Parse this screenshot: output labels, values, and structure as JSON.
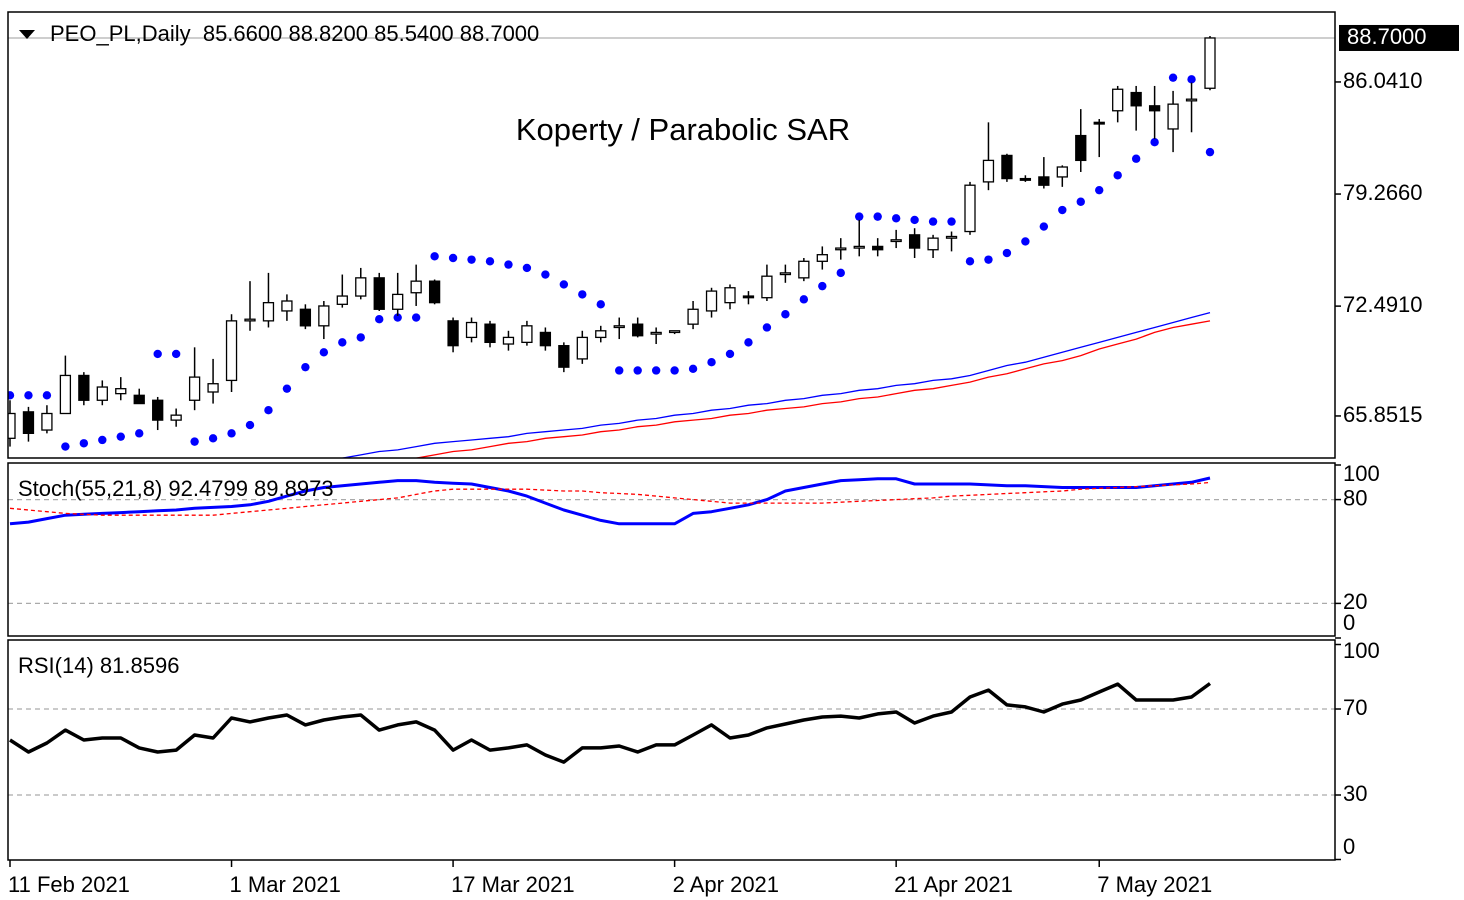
{
  "chart_data": [
    {
      "type": "candlestick",
      "title": "PEO_PL,Daily  85.6600 88.8200 85.5400 88.7000",
      "annotation": "Koperty / Parabolic SAR",
      "open": [
        64.5,
        66.1,
        65.0,
        66.0,
        68.3,
        66.8,
        67.2,
        67.1,
        66.8,
        65.6,
        66.8,
        67.3,
        68.0,
        71.6,
        71.6,
        72.2,
        72.3,
        71.3,
        72.6,
        73.1,
        74.2,
        72.3,
        73.3,
        74.0,
        71.6,
        70.6,
        71.4,
        70.2,
        70.3,
        70.9,
        70.1,
        69.3,
        70.6,
        71.2,
        71.4,
        70.8,
        70.9,
        71.4,
        72.2,
        72.7,
        73.1,
        73.0,
        74.4,
        74.2,
        75.2,
        75.9,
        76.0,
        76.1,
        76.4,
        76.8,
        75.9,
        76.6,
        77.0,
        80.0,
        81.6,
        80.2,
        80.3,
        80.3,
        82.8,
        83.6,
        84.3,
        85.4,
        84.6,
        83.2,
        84.9,
        85.66
      ],
      "high": [
        66.8,
        66.4,
        66.5,
        69.5,
        68.5,
        68.0,
        68.2,
        67.5,
        67.0,
        66.3,
        70.0,
        69.3,
        72.0,
        74.0,
        74.5,
        73.2,
        72.6,
        72.8,
        74.4,
        74.8,
        74.5,
        74.5,
        75.0,
        74.1,
        71.8,
        71.8,
        71.6,
        71.0,
        71.6,
        71.2,
        70.3,
        71.0,
        71.3,
        71.8,
        71.8,
        71.2,
        71.0,
        72.8,
        73.6,
        73.8,
        73.4,
        75.0,
        75.0,
        75.4,
        76.1,
        76.6,
        77.7,
        76.6,
        77.1,
        77.2,
        76.8,
        77.0,
        80.0,
        83.6,
        81.7,
        80.4,
        81.5,
        81.0,
        84.4,
        83.8,
        85.8,
        85.8,
        85.8,
        85.5,
        86.0,
        88.82
      ],
      "low": [
        64.0,
        64.3,
        64.8,
        66.0,
        66.5,
        66.5,
        66.8,
        66.6,
        65.0,
        65.2,
        66.2,
        66.6,
        67.3,
        71.0,
        71.2,
        71.6,
        71.1,
        70.5,
        72.4,
        72.9,
        72.2,
        71.9,
        72.5,
        72.6,
        69.7,
        70.3,
        70.0,
        69.8,
        70.1,
        69.8,
        68.5,
        69.0,
        70.3,
        70.5,
        70.6,
        70.2,
        70.8,
        71.1,
        71.8,
        72.3,
        72.6,
        72.8,
        73.9,
        74.0,
        74.7,
        75.3,
        75.5,
        75.5,
        76.0,
        75.4,
        75.4,
        75.8,
        76.8,
        79.5,
        80.0,
        80.0,
        79.6,
        79.7,
        80.6,
        81.5,
        83.6,
        83.1,
        82.6,
        81.8,
        83.0,
        85.54
      ],
      "close": [
        66.0,
        64.8,
        66.0,
        68.3,
        66.8,
        67.6,
        67.5,
        66.6,
        65.6,
        65.9,
        68.2,
        67.8,
        71.6,
        71.7,
        72.7,
        72.8,
        71.3,
        72.5,
        73.1,
        74.2,
        72.3,
        73.2,
        74.0,
        72.7,
        70.1,
        71.5,
        70.3,
        70.6,
        71.3,
        70.1,
        68.8,
        70.6,
        71.0,
        71.3,
        70.7,
        70.9,
        71.0,
        72.3,
        73.4,
        73.6,
        73.0,
        74.3,
        74.5,
        75.2,
        75.6,
        76.0,
        76.1,
        75.9,
        76.5,
        76.0,
        76.6,
        76.7,
        79.8,
        81.3,
        80.2,
        80.1,
        79.8,
        80.9,
        81.3,
        83.5,
        85.6,
        84.6,
        84.3,
        84.7,
        85.0,
        88.7
      ],
      "up_color": "#ffffff",
      "down_color": "#000000",
      "series": [
        {
          "style": "dots",
          "color": "#0000ff",
          "values": [
            67.1,
            67.1,
            67.1,
            64.0,
            64.2,
            64.4,
            64.6,
            64.8,
            69.6,
            69.6,
            64.3,
            64.5,
            64.8,
            65.3,
            66.2,
            67.5,
            68.8,
            69.7,
            70.3,
            70.6,
            71.7,
            71.8,
            71.8,
            75.5,
            75.4,
            75.3,
            75.2,
            75.0,
            74.8,
            74.4,
            73.8,
            73.2,
            72.6,
            68.6,
            68.6,
            68.6,
            68.6,
            68.7,
            69.1,
            69.6,
            70.3,
            71.2,
            72.0,
            72.9,
            73.7,
            74.5,
            77.9,
            77.9,
            77.8,
            77.7,
            77.6,
            77.6,
            75.2,
            75.3,
            75.7,
            76.4,
            77.3,
            78.3,
            78.8,
            79.5,
            80.4,
            81.4,
            82.4,
            86.3,
            86.2,
            81.8
          ]
        },
        {
          "style": "solid",
          "color": "#0000ff",
          "width": 1.3,
          "values": [
            null,
            null,
            null,
            null,
            null,
            null,
            null,
            null,
            null,
            null,
            null,
            null,
            null,
            null,
            null,
            null,
            null,
            null,
            63.3,
            63.5,
            63.7,
            63.8,
            64.0,
            64.2,
            64.3,
            64.4,
            64.5,
            64.6,
            64.8,
            64.9,
            65.0,
            65.1,
            65.3,
            65.4,
            65.6,
            65.7,
            65.9,
            66.0,
            66.2,
            66.3,
            66.5,
            66.6,
            66.8,
            66.9,
            67.1,
            67.2,
            67.4,
            67.5,
            67.7,
            67.8,
            68.0,
            68.1,
            68.3,
            68.6,
            68.9,
            69.1,
            69.4,
            69.7,
            70.0,
            70.3,
            70.6,
            70.9,
            71.2,
            71.5,
            71.8,
            72.1
          ]
        },
        {
          "style": "solid",
          "color": "#ff0000",
          "width": 1.3,
          "values": [
            null,
            null,
            null,
            null,
            null,
            null,
            null,
            null,
            null,
            null,
            null,
            null,
            null,
            null,
            null,
            null,
            null,
            null,
            null,
            null,
            null,
            null,
            63.3,
            63.5,
            63.7,
            63.8,
            64.0,
            64.2,
            64.3,
            64.5,
            64.6,
            64.7,
            64.9,
            65.0,
            65.2,
            65.3,
            65.5,
            65.6,
            65.7,
            65.9,
            66.0,
            66.2,
            66.3,
            66.4,
            66.6,
            66.7,
            66.9,
            67.0,
            67.2,
            67.4,
            67.5,
            67.7,
            67.9,
            68.2,
            68.4,
            68.7,
            69.0,
            69.2,
            69.5,
            69.9,
            70.2,
            70.5,
            70.9,
            71.2,
            71.4,
            71.6
          ]
        }
      ],
      "current_price": {
        "value": 88.7,
        "label": "88.7000"
      },
      "ylim": [
        63.31,
        90.27
      ],
      "yticks": [
        {
          "value": 86.041,
          "label": "86.0410"
        },
        {
          "value": 79.266,
          "label": "79.2660"
        },
        {
          "value": 72.491,
          "label": "72.4910"
        },
        {
          "value": 65.8515,
          "label": "65.8515"
        }
      ],
      "grid": false
    },
    {
      "type": "line",
      "title": "Stoch(55,21,8) 92.4799 89.8973",
      "series": [
        {
          "style": "solid",
          "color": "#0000ff",
          "width": 3,
          "values": [
            66,
            67,
            69,
            71,
            71.5,
            72,
            72.5,
            73,
            73.5,
            74,
            75,
            75.5,
            76,
            77,
            79,
            82,
            85,
            87,
            88,
            89,
            90,
            91,
            91,
            90,
            89.5,
            89,
            87,
            85,
            82,
            78,
            74,
            71,
            68,
            66,
            66,
            66,
            66,
            72,
            73,
            75,
            77,
            80,
            85,
            87,
            89,
            91,
            91.5,
            92,
            92,
            89,
            89,
            89,
            89,
            88.5,
            88,
            88,
            87.5,
            87,
            87,
            87,
            87,
            87,
            88,
            89,
            90,
            92.4799
          ]
        },
        {
          "style": "dashed",
          "color": "#ff0000",
          "width": 1.3,
          "values": [
            75,
            74,
            73,
            72,
            71.5,
            71,
            71,
            71,
            71,
            71,
            71,
            71,
            72,
            73,
            74,
            75,
            76,
            77,
            78,
            79,
            80,
            81,
            83,
            85,
            86,
            86,
            86,
            86,
            86,
            85.5,
            85,
            85,
            84,
            83.5,
            83,
            82,
            81,
            80,
            79,
            78,
            78,
            78,
            78,
            78,
            78,
            78.5,
            79,
            79.5,
            80,
            80.5,
            81,
            82,
            82.5,
            83,
            83.5,
            84,
            84.5,
            85,
            86,
            86.5,
            87,
            87.5,
            88,
            88.5,
            89,
            89.8973
          ]
        }
      ],
      "ylim": [
        0,
        100
      ],
      "yticks": [
        100,
        80,
        20,
        0
      ],
      "grid": true
    },
    {
      "type": "line",
      "title": "RSI(14) 81.8596",
      "categories": [
        "11 Feb 2021",
        null,
        null,
        null,
        null,
        null,
        null,
        null,
        null,
        null,
        null,
        null,
        "1 Mar 2021",
        null,
        null,
        null,
        null,
        null,
        null,
        null,
        null,
        null,
        null,
        null,
        "17 Mar 2021",
        null,
        null,
        null,
        null,
        null,
        null,
        null,
        null,
        null,
        null,
        null,
        "2 Apr 2021",
        null,
        null,
        null,
        null,
        null,
        null,
        null,
        null,
        null,
        null,
        null,
        "21 Apr 2021",
        null,
        null,
        null,
        null,
        null,
        null,
        null,
        null,
        null,
        null,
        "7 May 2021",
        null,
        null,
        null,
        null,
        null,
        null
      ],
      "series": [
        {
          "style": "solid",
          "color": "#000000",
          "width": 3.5,
          "values": [
            55.6,
            50.0,
            54.2,
            60.2,
            55.6,
            56.5,
            56.5,
            51.9,
            50.0,
            50.9,
            57.9,
            56.5,
            65.8,
            64.0,
            65.8,
            67.2,
            62.6,
            64.9,
            66.3,
            67.2,
            60.2,
            62.6,
            64.0,
            60.2,
            50.9,
            55.6,
            50.9,
            51.9,
            53.3,
            48.6,
            45.3,
            51.9,
            51.9,
            52.8,
            50.0,
            53.3,
            53.3,
            57.9,
            62.6,
            56.5,
            57.9,
            61.2,
            63.0,
            64.9,
            66.3,
            66.7,
            65.8,
            67.7,
            68.6,
            63.5,
            66.7,
            68.6,
            75.6,
            78.8,
            71.9,
            71.0,
            68.6,
            72.3,
            74.2,
            77.9,
            81.6,
            74.2,
            74.2,
            74.2,
            75.6,
            81.8596
          ]
        }
      ],
      "ylim": [
        0,
        100
      ],
      "yticks": [
        100,
        70,
        30,
        0
      ],
      "grid": true
    }
  ]
}
